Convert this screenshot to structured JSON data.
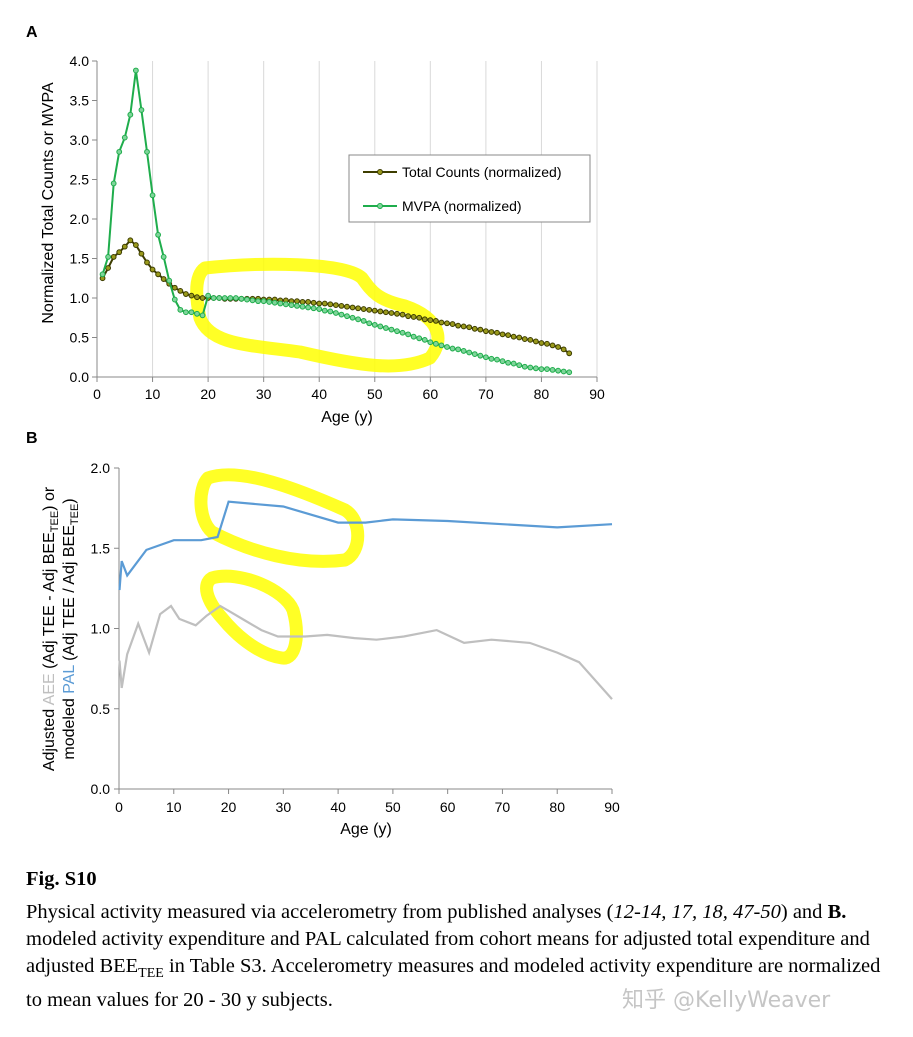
{
  "colors": {
    "total_counts_line": "#3d3d00",
    "total_counts_marker": "#9a9a1c",
    "mvpa": "#1fad4c",
    "pal": "#5b9bd5",
    "aee": "#bfbfbf",
    "highlight": "#ffff00",
    "axis": "#888888"
  },
  "chart_data": [
    {
      "panel_label": "A",
      "type": "line",
      "xlabel": "Age (y)",
      "ylabel": "Normalized Total Counts or MVPA",
      "xlim": [
        0,
        90
      ],
      "ylim": [
        0,
        4.0
      ],
      "xticks": [
        "0",
        "10",
        "20",
        "30",
        "40",
        "50",
        "60",
        "70",
        "80",
        "90"
      ],
      "yticks": [
        "0.0",
        "0.5",
        "1.0",
        "1.5",
        "2.0",
        "2.5",
        "3.0",
        "3.5",
        "4.0"
      ],
      "grid": "vertical",
      "legend_placement": "top-right",
      "series": [
        {
          "name": "Total Counts (normalized)",
          "x": [
            1,
            2,
            3,
            4,
            5,
            6,
            7,
            8,
            9,
            10,
            11,
            12,
            13,
            14,
            15,
            16,
            17,
            18,
            19,
            20,
            21,
            22,
            23,
            24,
            25,
            26,
            27,
            28,
            29,
            30,
            31,
            32,
            33,
            34,
            35,
            36,
            37,
            38,
            39,
            40,
            41,
            42,
            43,
            44,
            45,
            46,
            47,
            48,
            49,
            50,
            51,
            52,
            53,
            54,
            55,
            56,
            57,
            58,
            59,
            60,
            61,
            62,
            63,
            64,
            65,
            66,
            67,
            68,
            69,
            70,
            71,
            72,
            73,
            74,
            75,
            76,
            77,
            78,
            79,
            80,
            81,
            82,
            83,
            84,
            85
          ],
          "y": [
            1.25,
            1.38,
            1.52,
            1.58,
            1.65,
            1.73,
            1.67,
            1.56,
            1.45,
            1.36,
            1.3,
            1.24,
            1.18,
            1.13,
            1.09,
            1.05,
            1.03,
            1.01,
            1.0,
            1.0,
            1.0,
            1.0,
            0.99,
            0.99,
            0.99,
            0.99,
            0.99,
            0.99,
            0.99,
            0.98,
            0.98,
            0.98,
            0.97,
            0.97,
            0.96,
            0.96,
            0.95,
            0.95,
            0.94,
            0.93,
            0.93,
            0.92,
            0.91,
            0.9,
            0.89,
            0.88,
            0.87,
            0.86,
            0.85,
            0.84,
            0.83,
            0.82,
            0.81,
            0.8,
            0.79,
            0.77,
            0.76,
            0.75,
            0.73,
            0.72,
            0.71,
            0.69,
            0.68,
            0.67,
            0.65,
            0.64,
            0.63,
            0.61,
            0.6,
            0.58,
            0.57,
            0.56,
            0.54,
            0.53,
            0.51,
            0.5,
            0.48,
            0.47,
            0.45,
            0.43,
            0.42,
            0.4,
            0.38,
            0.35,
            0.3
          ]
        },
        {
          "name": "MVPA (normalized)",
          "x": [
            1,
            2,
            3,
            4,
            5,
            6,
            7,
            8,
            9,
            10,
            11,
            12,
            13,
            14,
            15,
            16,
            17,
            18,
            19,
            20,
            21,
            22,
            23,
            24,
            25,
            26,
            27,
            28,
            29,
            30,
            31,
            32,
            33,
            34,
            35,
            36,
            37,
            38,
            39,
            40,
            41,
            42,
            43,
            44,
            45,
            46,
            47,
            48,
            49,
            50,
            51,
            52,
            53,
            54,
            55,
            56,
            57,
            58,
            59,
            60,
            61,
            62,
            63,
            64,
            65,
            66,
            67,
            68,
            69,
            70,
            71,
            72,
            73,
            74,
            75,
            76,
            77,
            78,
            79,
            80,
            81,
            82,
            83,
            84,
            85
          ],
          "y": [
            1.3,
            1.52,
            2.45,
            2.85,
            3.03,
            3.32,
            3.88,
            3.38,
            2.85,
            2.3,
            1.8,
            1.52,
            1.22,
            0.98,
            0.85,
            0.82,
            0.82,
            0.8,
            0.78,
            1.03,
            1.0,
            1.0,
            1.0,
            1.0,
            1.0,
            0.99,
            0.98,
            0.97,
            0.96,
            0.96,
            0.95,
            0.94,
            0.93,
            0.92,
            0.91,
            0.9,
            0.89,
            0.88,
            0.87,
            0.86,
            0.84,
            0.83,
            0.81,
            0.79,
            0.77,
            0.75,
            0.73,
            0.71,
            0.68,
            0.66,
            0.64,
            0.62,
            0.6,
            0.58,
            0.56,
            0.54,
            0.51,
            0.49,
            0.47,
            0.44,
            0.42,
            0.4,
            0.38,
            0.36,
            0.35,
            0.33,
            0.31,
            0.29,
            0.27,
            0.25,
            0.23,
            0.22,
            0.2,
            0.18,
            0.17,
            0.15,
            0.13,
            0.12,
            0.11,
            0.1,
            0.1,
            0.09,
            0.08,
            0.07,
            0.06
          ]
        }
      ]
    },
    {
      "panel_label": "B",
      "type": "line",
      "xlabel": "Age (y)",
      "ylabel_line1_prefix": "Adjusted ",
      "ylabel_line1_colored": "AEE",
      "ylabel_line1_text": " (Adj TEE - Adj BEE",
      "ylabel_line1_sub": "TEE",
      "ylabel_line1_end": ") or",
      "ylabel_line2_prefix": "modeled ",
      "ylabel_line2_colored": "PAL",
      "ylabel_line2_text": " (Adj TEE / Adj BEE",
      "ylabel_line2_sub": "TEE",
      "ylabel_line2_end": ")",
      "xlim": [
        0,
        90
      ],
      "ylim": [
        0,
        2.0
      ],
      "xticks": [
        "0",
        "10",
        "20",
        "30",
        "40",
        "50",
        "60",
        "70",
        "80",
        "90"
      ],
      "yticks": [
        "0.0",
        "0.5",
        "1.0",
        "1.5",
        "2.0"
      ],
      "grid": "none",
      "series": [
        {
          "key": "PAL",
          "x": [
            0.1,
            0.5,
            1.5,
            5,
            10,
            15,
            18,
            20,
            30,
            40,
            45,
            50,
            60,
            70,
            80,
            90
          ],
          "y": [
            1.24,
            1.42,
            1.33,
            1.49,
            1.55,
            1.55,
            1.57,
            1.79,
            1.76,
            1.66,
            1.66,
            1.68,
            1.67,
            1.65,
            1.63,
            1.65
          ]
        },
        {
          "key": "AEE",
          "x": [
            0.1,
            0.5,
            1.5,
            3.5,
            5.5,
            7.5,
            9.5,
            11,
            14,
            16,
            18.5,
            20,
            23,
            26,
            29,
            34,
            38,
            43,
            47,
            52,
            55,
            58,
            63,
            68,
            75,
            80,
            84,
            90
          ],
          "y": [
            0.8,
            0.63,
            0.84,
            1.03,
            0.85,
            1.09,
            1.14,
            1.06,
            1.02,
            1.08,
            1.14,
            1.11,
            1.05,
            0.99,
            0.95,
            0.95,
            0.96,
            0.94,
            0.93,
            0.95,
            0.97,
            0.99,
            0.91,
            0.93,
            0.91,
            0.85,
            0.79,
            0.56
          ]
        }
      ]
    }
  ],
  "caption": {
    "title": "Fig. S10",
    "text_1": "Physical activity measured via accelerometry from published analyses (",
    "refs": "12-14, 17, 18, 47-50",
    "text_2": ") and ",
    "bold_b": "B.",
    "text_3": " modeled activity expenditure and PAL calculated from cohort means for adjusted total expenditure and adjusted BEE",
    "sub_tee": "TEE",
    "text_4": " in Table S3. Accelerometry measures and modeled activity expenditure are normalized to mean values for 20 - 30 y subjects."
  },
  "watermark": "知乎 @KellyWeaver"
}
